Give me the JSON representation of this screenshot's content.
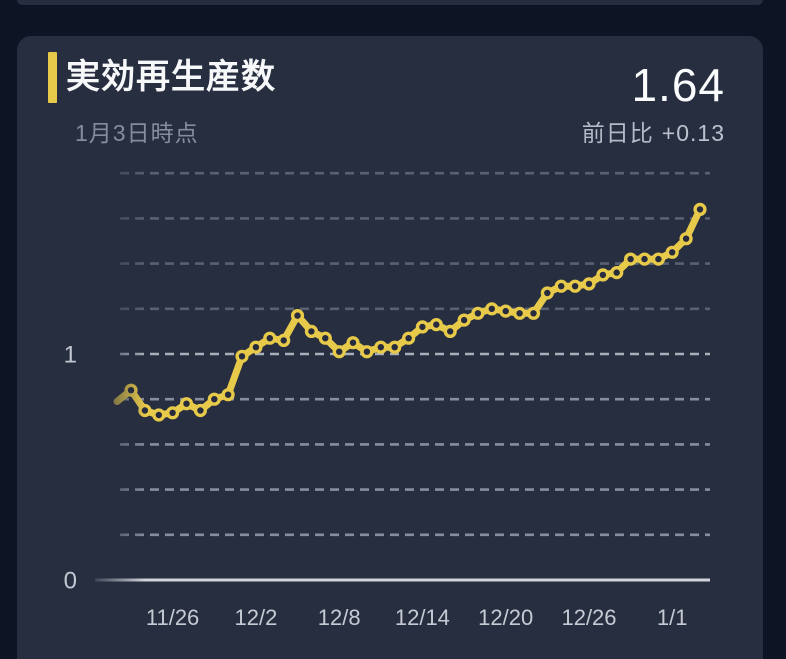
{
  "header": {
    "title": "実効再生産数",
    "subtitle": "1月3日時点",
    "value": "1.64",
    "delta_label": "前日比",
    "delta_value": "+0.13"
  },
  "colors": {
    "page_bg": "#0d1525",
    "card_bg": "#272e40",
    "accent_yellow": "#e8ca4a",
    "axis_line": "#d0d3da",
    "grid_dim": "rgba(139,146,161,0.5)",
    "grid_mid": "rgba(173,179,191,0.72)",
    "grid_bright": "rgba(192,197,207,0.85)",
    "marker_center": "#262c3d",
    "tick_text": "#c6cad3"
  },
  "chart_data": {
    "type": "line",
    "title": "実効再生産数",
    "subtitle_as_of": "1月3日時点",
    "latest_value": 1.64,
    "day_over_day_change": 0.13,
    "x": [
      "11/23",
      "11/24",
      "11/25",
      "11/26",
      "11/27",
      "11/28",
      "11/29",
      "11/30",
      "12/1",
      "12/2",
      "12/3",
      "12/4",
      "12/5",
      "12/6",
      "12/7",
      "12/8",
      "12/9",
      "12/10",
      "12/11",
      "12/12",
      "12/13",
      "12/14",
      "12/15",
      "12/16",
      "12/17",
      "12/18",
      "12/19",
      "12/20",
      "12/21",
      "12/22",
      "12/23",
      "12/24",
      "12/25",
      "12/26",
      "12/27",
      "12/28",
      "12/29",
      "12/30",
      "12/31",
      "1/1",
      "1/2",
      "1/3"
    ],
    "values": [
      0.84,
      0.75,
      0.73,
      0.74,
      0.78,
      0.75,
      0.8,
      0.82,
      0.99,
      1.03,
      1.07,
      1.06,
      1.17,
      1.1,
      1.07,
      1.01,
      1.05,
      1.01,
      1.03,
      1.03,
      1.07,
      1.12,
      1.13,
      1.1,
      1.15,
      1.18,
      1.2,
      1.19,
      1.18,
      1.18,
      1.27,
      1.3,
      1.3,
      1.31,
      1.35,
      1.36,
      1.42,
      1.42,
      1.42,
      1.45,
      1.51,
      1.64
    ],
    "x_tick_labels": [
      "11/26",
      "12/2",
      "12/8",
      "12/14",
      "12/20",
      "12/26",
      "1/1"
    ],
    "y_ticks": [
      {
        "label": "1",
        "value": 1
      },
      {
        "label": "0",
        "value": 0
      }
    ],
    "grid_values": [
      0.2,
      0.4,
      0.6,
      0.8,
      1.0,
      1.2,
      1.4,
      1.6,
      1.8
    ],
    "ylim": [
      0,
      1.9
    ],
    "grid": "dashed-horizontal",
    "legend": "none",
    "series_color": "#e8ca4a"
  }
}
